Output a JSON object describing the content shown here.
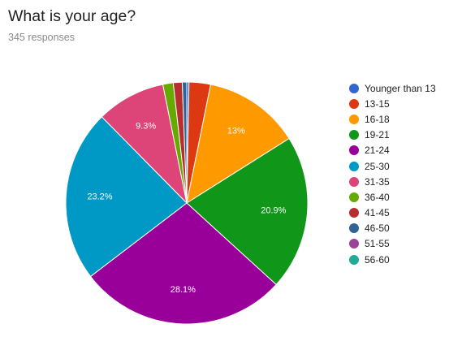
{
  "header": {
    "title": "What is your age?",
    "subtitle": "345 responses"
  },
  "chart_data": {
    "type": "pie",
    "title": "What is your age?",
    "legend_position": "right",
    "slices": [
      {
        "label": "Younger than 13",
        "value": 0.3,
        "color": "#3366cc",
        "display": ""
      },
      {
        "label": "13-15",
        "value": 2.9,
        "color": "#dc3912",
        "display": ""
      },
      {
        "label": "16-18",
        "value": 13.0,
        "color": "#ff9900",
        "display": "13%"
      },
      {
        "label": "19-21",
        "value": 20.9,
        "color": "#109618",
        "display": "20.9%"
      },
      {
        "label": "21-24",
        "value": 28.1,
        "color": "#990099",
        "display": "28.1%"
      },
      {
        "label": "25-30",
        "value": 23.2,
        "color": "#0099c6",
        "display": "23.2%"
      },
      {
        "label": "31-35",
        "value": 9.3,
        "color": "#dd4477",
        "display": "9.3%"
      },
      {
        "label": "36-40",
        "value": 1.4,
        "color": "#66aa00",
        "display": ""
      },
      {
        "label": "41-45",
        "value": 1.2,
        "color": "#b82e2e",
        "display": ""
      },
      {
        "label": "46-50",
        "value": 0.6,
        "color": "#316395",
        "display": ""
      },
      {
        "label": "51-55",
        "value": 0.0,
        "color": "#994499",
        "display": ""
      },
      {
        "label": "56-60",
        "value": 0.0,
        "color": "#22aa99",
        "display": ""
      }
    ]
  }
}
